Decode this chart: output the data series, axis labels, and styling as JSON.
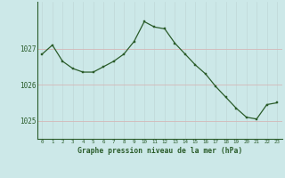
{
  "x": [
    0,
    1,
    2,
    3,
    4,
    5,
    6,
    7,
    8,
    9,
    10,
    11,
    12,
    13,
    14,
    15,
    16,
    17,
    18,
    19,
    20,
    21,
    22,
    23
  ],
  "y": [
    1026.85,
    1027.1,
    1026.65,
    1026.45,
    1026.35,
    1026.35,
    1026.5,
    1026.65,
    1026.85,
    1027.2,
    1027.75,
    1027.6,
    1027.55,
    1027.15,
    1026.85,
    1026.55,
    1026.3,
    1025.95,
    1025.65,
    1025.35,
    1025.1,
    1025.05,
    1025.45,
    1025.5
  ],
  "line_color": "#2a5c2a",
  "marker_color": "#2a5c2a",
  "bg_color": "#cce8e8",
  "grid_color_h": "#b0d0d0",
  "grid_color_v": "#c0d8d8",
  "xlabel": "Graphe pression niveau de la mer (hPa)",
  "xlabel_color": "#2a5c2a",
  "tick_color": "#2a5c2a",
  "ylim": [
    1024.5,
    1028.3
  ],
  "yticks": [
    1025,
    1026,
    1027
  ],
  "xlim": [
    -0.5,
    23.5
  ],
  "xticks": [
    0,
    1,
    2,
    3,
    4,
    5,
    6,
    7,
    8,
    9,
    10,
    11,
    12,
    13,
    14,
    15,
    16,
    17,
    18,
    19,
    20,
    21,
    22,
    23
  ]
}
